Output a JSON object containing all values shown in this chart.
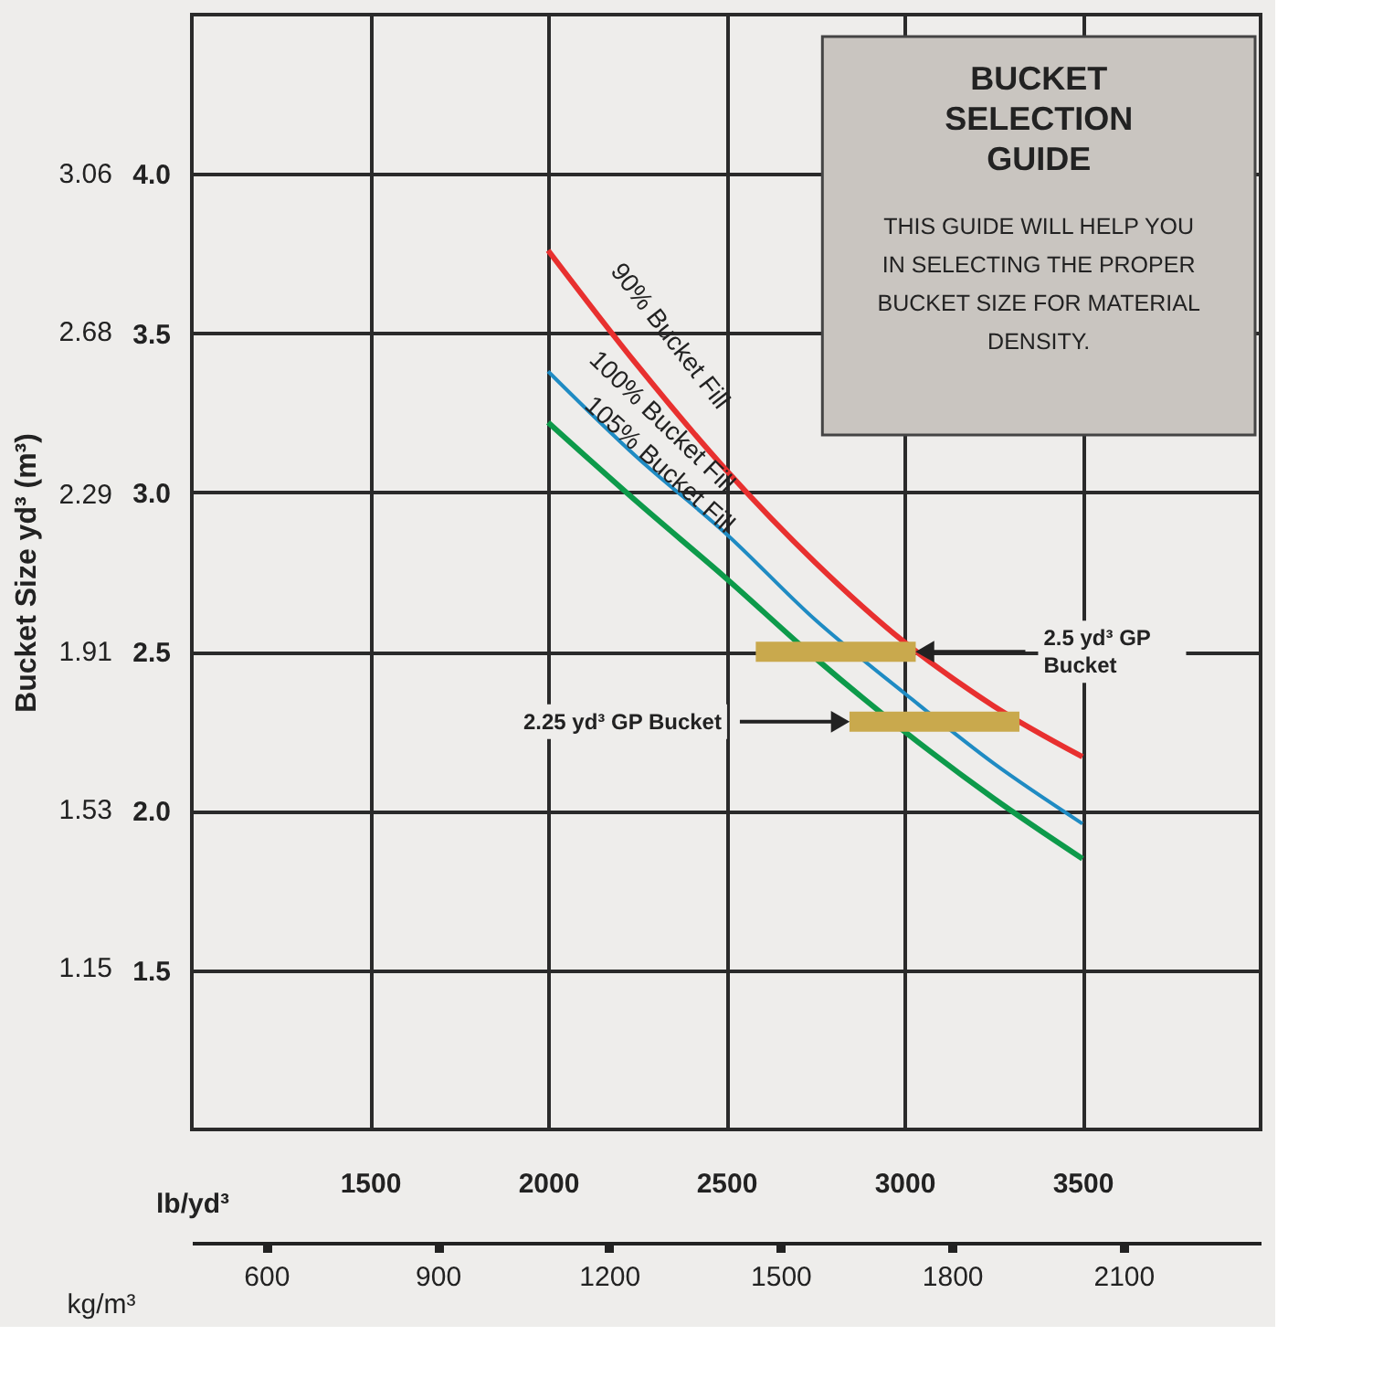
{
  "chart_data": {
    "type": "line",
    "title": "BUCKET SELECTION GUIDE",
    "subtitle": "THIS GUIDE WILL HELP YOU IN SELECTING THE PROPER BUCKET SIZE FOR MATERIAL DENSITY.",
    "xlabel": "lb/yd³",
    "x2label": "kg/m³",
    "y2label": "Bucket Size yd³ (m³)",
    "xlim": [
      1000,
      4000
    ],
    "xticks": [
      1500,
      2000,
      2500,
      3000,
      3500
    ],
    "x2lim": [
      470,
      2340
    ],
    "x2ticks": [
      600,
      900,
      1200,
      1500,
      1800,
      2100
    ],
    "ylim": [
      1.0,
      4.5
    ],
    "yticks": [
      1.5,
      {
        "value": 2,
        "label": "2.0"
      },
      2.5,
      {
        "value": 3,
        "label": "3.0"
      },
      3.5,
      {
        "value": 4,
        "label": "4.0"
      }
    ],
    "y2lim": [
      0.76,
      3.44
    ],
    "y2ticks": [
      1.15,
      1.53,
      1.91,
      2.29,
      2.68,
      3.06
    ],
    "grid": true,
    "legend": false,
    "marker": "none",
    "line_style": "solid",
    "series": [
      {
        "name": "90% Bucket Fill",
        "color": "#e8302f",
        "x": [
          2000,
          2250,
          2500,
          2750,
          3000,
          3250,
          3500
        ],
        "values": [
          3.76,
          3.4,
          3.07,
          2.78,
          2.53,
          2.33,
          2.17
        ]
      },
      {
        "name": "100% Bucket Fill",
        "color": "#1f8bc3",
        "x": [
          2000,
          2250,
          2500,
          2750,
          3000,
          3250,
          3500
        ],
        "values": [
          3.38,
          3.11,
          2.87,
          2.6,
          2.37,
          2.15,
          1.96
        ]
      },
      {
        "name": "105% Bucket Fill",
        "color": "#0d9a4a",
        "x": [
          2000,
          2250,
          2500,
          2750,
          3000,
          3250,
          3500
        ],
        "values": [
          3.22,
          2.97,
          2.73,
          2.48,
          2.25,
          2.04,
          1.85
        ]
      },
      {
        "color": "#c9a94d",
        "x": [
          2583,
          3032
        ],
        "values": [
          2.5,
          2.5
        ]
      },
      {
        "color": "#c9a94d",
        "x": [
          2846,
          3323
        ],
        "values": [
          2.28,
          2.28
        ]
      }
    ],
    "annotations": [
      {
        "text": "2.5 yd³ GP Bucket",
        "x": 3032,
        "y": 2.5
      },
      {
        "text": "2.25 yd³ GP Bucket",
        "x": 2846,
        "y": 2.28
      }
    ]
  }
}
